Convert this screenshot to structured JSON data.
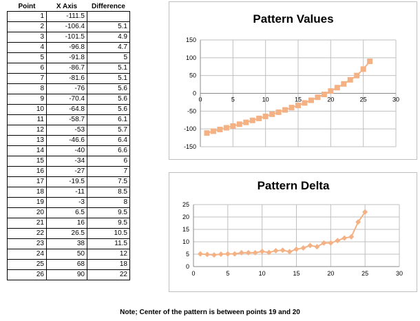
{
  "table": {
    "headers": [
      "Point",
      "X Axis",
      "Difference"
    ],
    "rows": [
      [
        "1",
        "-111.5",
        ""
      ],
      [
        "2",
        "-106.4",
        "5.1"
      ],
      [
        "3",
        "-101.5",
        "4.9"
      ],
      [
        "4",
        "-96.8",
        "4.7"
      ],
      [
        "5",
        "-91.8",
        "5"
      ],
      [
        "6",
        "-86.7",
        "5.1"
      ],
      [
        "7",
        "-81.6",
        "5.1"
      ],
      [
        "8",
        "-76",
        "5.6"
      ],
      [
        "9",
        "-70.4",
        "5.6"
      ],
      [
        "10",
        "-64.8",
        "5.6"
      ],
      [
        "11",
        "-58.7",
        "6.1"
      ],
      [
        "12",
        "-53",
        "5.7"
      ],
      [
        "13",
        "-46.6",
        "6.4"
      ],
      [
        "14",
        "-40",
        "6.6"
      ],
      [
        "15",
        "-34",
        "6"
      ],
      [
        "16",
        "-27",
        "7"
      ],
      [
        "17",
        "-19.5",
        "7.5"
      ],
      [
        "18",
        "-11",
        "8.5"
      ],
      [
        "19",
        "-3",
        "8"
      ],
      [
        "20",
        "6.5",
        "9.5"
      ],
      [
        "21",
        "16",
        "9.5"
      ],
      [
        "22",
        "26.5",
        "10.5"
      ],
      [
        "23",
        "38",
        "11.5"
      ],
      [
        "24",
        "50",
        "12"
      ],
      [
        "25",
        "68",
        "18"
      ],
      [
        "26",
        "90",
        "22"
      ]
    ]
  },
  "chart_data": [
    {
      "type": "line",
      "title": "Pattern Values",
      "marker": "square",
      "color": "#f4b183",
      "xlim": [
        0,
        30
      ],
      "ylim": [
        -150,
        150
      ],
      "xticks": [
        0,
        5,
        10,
        15,
        20,
        25,
        30
      ],
      "yticks": [
        -150,
        -100,
        -50,
        0,
        50,
        100,
        150
      ],
      "x": [
        1,
        2,
        3,
        4,
        5,
        6,
        7,
        8,
        9,
        10,
        11,
        12,
        13,
        14,
        15,
        16,
        17,
        18,
        19,
        20,
        21,
        22,
        23,
        24,
        25,
        26
      ],
      "y": [
        -111.5,
        -106.4,
        -101.5,
        -96.8,
        -91.8,
        -86.7,
        -81.6,
        -76,
        -70.4,
        -64.8,
        -58.7,
        -53,
        -46.6,
        -40,
        -34,
        -27,
        -19.5,
        -11,
        -3,
        6.5,
        16,
        26.5,
        38,
        50,
        68,
        90
      ],
      "grid": true
    },
    {
      "type": "line",
      "title": "Pattern Delta",
      "marker": "diamond",
      "color": "#f4b183",
      "xlim": [
        0,
        30
      ],
      "ylim": [
        0,
        25
      ],
      "xticks": [
        0,
        5,
        10,
        15,
        20,
        25,
        30
      ],
      "yticks": [
        0,
        5,
        10,
        15,
        20,
        25
      ],
      "x": [
        1,
        2,
        3,
        4,
        5,
        6,
        7,
        8,
        9,
        10,
        11,
        12,
        13,
        14,
        15,
        16,
        17,
        18,
        19,
        20,
        21,
        22,
        23,
        24,
        25
      ],
      "y": [
        5.1,
        4.9,
        4.7,
        5,
        5.1,
        5.1,
        5.6,
        5.6,
        5.6,
        6.1,
        5.7,
        6.4,
        6.6,
        6,
        7,
        7.5,
        8.5,
        8,
        9.5,
        9.5,
        10.5,
        11.5,
        12,
        18,
        22
      ],
      "grid": true
    }
  ],
  "footnote": "Note; Center of the pattern is between points 19 and 20"
}
